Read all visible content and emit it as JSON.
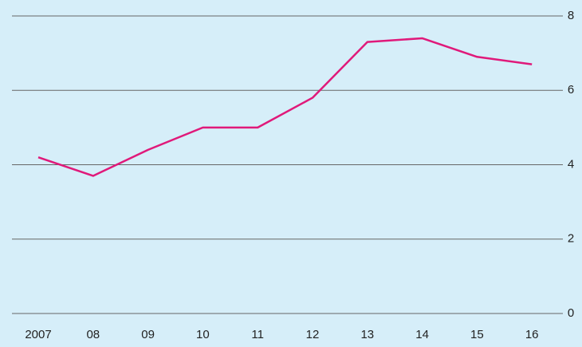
{
  "chart_data": {
    "type": "line",
    "categories": [
      "2007",
      "08",
      "09",
      "10",
      "11",
      "12",
      "13",
      "14",
      "15",
      "16"
    ],
    "series": [
      {
        "color": "#e0197a",
        "values": [
          4.2,
          3.7,
          4.4,
          5.0,
          5.0,
          5.8,
          7.3,
          7.4,
          6.9,
          6.7
        ]
      }
    ],
    "ylim": [
      0,
      8
    ],
    "yticks": [
      0,
      2,
      4,
      6,
      8
    ],
    "grid": true,
    "y_axis_side": "right"
  }
}
